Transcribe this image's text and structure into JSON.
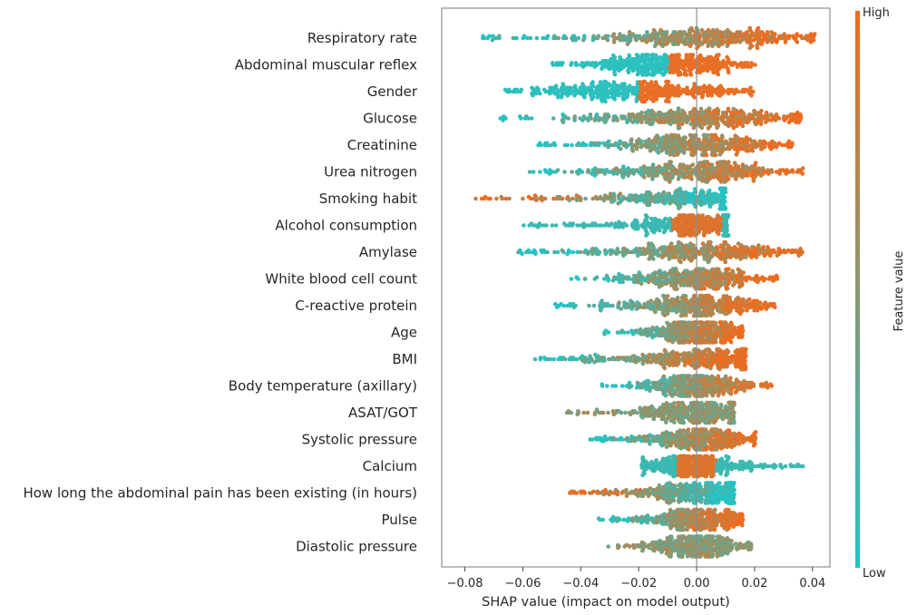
{
  "chart_data": {
    "type": "scatter",
    "subtype": "shap-beeswarm-summary",
    "title": "",
    "xlabel": "SHAP value (impact on model output)",
    "ylabel": "",
    "xlim": [
      -0.088,
      0.046
    ],
    "xticks": [
      -0.08,
      -0.06,
      -0.04,
      -0.02,
      0.0,
      0.02,
      0.04
    ],
    "xtick_labels": [
      "−0.08",
      "−0.06",
      "−0.04",
      "−0.02",
      "0.00",
      "0.02",
      "0.04"
    ],
    "zero_line": true,
    "grid": false,
    "colorbar": {
      "label": "Feature value",
      "high_label": "High",
      "low_label": "Low",
      "high_color": "#F26A1B",
      "low_color": "#22C4C7"
    },
    "features": [
      {
        "name": "Respiratory rate",
        "min": -0.076,
        "max": 0.041,
        "pattern": "pos_high",
        "scale": 1.0
      },
      {
        "name": "Abdominal muscular reflex",
        "min": -0.05,
        "max": 0.021,
        "pattern": "split",
        "scale": 0.95,
        "split": -0.01
      },
      {
        "name": "Gender",
        "min": -0.067,
        "max": 0.02,
        "pattern": "split",
        "scale": 0.95,
        "split": -0.02
      },
      {
        "name": "Glucose",
        "min": -0.068,
        "max": 0.036,
        "pattern": "pos_high",
        "scale": 0.95
      },
      {
        "name": "Creatinine",
        "min": -0.055,
        "max": 0.033,
        "pattern": "pos_high",
        "scale": 0.95
      },
      {
        "name": "Urea nitrogen",
        "min": -0.058,
        "max": 0.037,
        "pattern": "pos_high",
        "scale": 0.9
      },
      {
        "name": "Smoking habit",
        "min": -0.078,
        "max": 0.01,
        "pattern": "neg_high",
        "scale": 0.8
      },
      {
        "name": "Alcohol consumption",
        "min": -0.06,
        "max": 0.011,
        "pattern": "neg_high_center",
        "scale": 0.85
      },
      {
        "name": "Amylase",
        "min": -0.062,
        "max": 0.037,
        "pattern": "pos_high",
        "scale": 0.85
      },
      {
        "name": "White blood cell count",
        "min": -0.044,
        "max": 0.028,
        "pattern": "pos_high",
        "scale": 0.8
      },
      {
        "name": "C-reactive protein",
        "min": -0.049,
        "max": 0.027,
        "pattern": "pos_high",
        "scale": 0.8
      },
      {
        "name": "Age",
        "min": -0.032,
        "max": 0.016,
        "pattern": "pos_high",
        "scale": 0.8
      },
      {
        "name": "BMI",
        "min": -0.057,
        "max": 0.017,
        "pattern": "pos_high",
        "scale": 0.75
      },
      {
        "name": "Body temperature (axillary)",
        "min": -0.033,
        "max": 0.026,
        "pattern": "pos_high",
        "scale": 0.8
      },
      {
        "name": "ASAT/GOT",
        "min": -0.045,
        "max": 0.013,
        "pattern": "mixed",
        "scale": 0.8
      },
      {
        "name": "Systolic pressure",
        "min": -0.037,
        "max": 0.021,
        "pattern": "pos_high",
        "scale": 0.75
      },
      {
        "name": "Calcium",
        "min": -0.019,
        "max": 0.037,
        "pattern": "neg_high_center",
        "scale": 0.75
      },
      {
        "name": "How long the abdominal pain has been existing (in hours)",
        "min": -0.044,
        "max": 0.013,
        "pattern": "neg_high",
        "scale": 0.75
      },
      {
        "name": "Pulse",
        "min": -0.034,
        "max": 0.016,
        "pattern": "pos_high",
        "scale": 0.7
      },
      {
        "name": "Diastolic pressure",
        "min": -0.031,
        "max": 0.019,
        "pattern": "mixed",
        "scale": 0.7
      }
    ]
  }
}
